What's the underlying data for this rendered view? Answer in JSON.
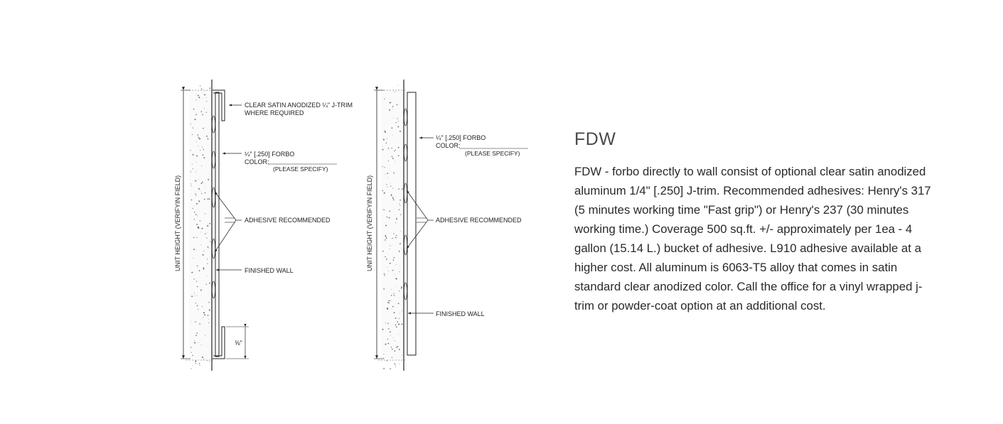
{
  "detail_left": {
    "dim_label": "UNIT HEIGHT (VERIFYIN FIELD)",
    "trim_line1": "CLEAR SATIN ANODIZED ¼\" J-TRIM",
    "trim_line2": "WHERE REQUIRED",
    "forbo_line1": "¼\" [.250] FORBO",
    "forbo_line2": "COLOR:",
    "forbo_specify": "(PLEASE SPECIFY)",
    "adhesive": "ADHESIVE RECOMMENDED",
    "finished_wall": "FINISHED WALL",
    "bottom_dim": "⅝\""
  },
  "detail_right": {
    "dim_label": "UNIT HEIGHT (VERIFYIN FIELD)",
    "forbo_line1": "¼\" [.250] FORBO",
    "forbo_line2": "COLOR:",
    "forbo_specify": "(PLEASE SPECIFY)",
    "adhesive": "ADHESIVE RECOMMENDED",
    "finished_wall": "FINISHED WALL"
  },
  "info": {
    "title": "FDW",
    "body": "FDW - forbo directly to wall consist of optional clear satin anodized aluminum 1/4\" [.250] J-trim. Recommended adhesives: Henry's 317 (5 minutes working time \"Fast grip\") or Henry's 237 (30 minutes working time.) Coverage 500 sq.ft. +/- approximately per 1ea - 4 gallon (15.14 L.) bucket of adhesive. L910 adhesive available at a higher cost. All aluminum is 6063-T5 alloy that comes in satin standard clear anodized color. Call the office for a vinyl wrapped j-trim or powder-coat option at an additional cost."
  }
}
